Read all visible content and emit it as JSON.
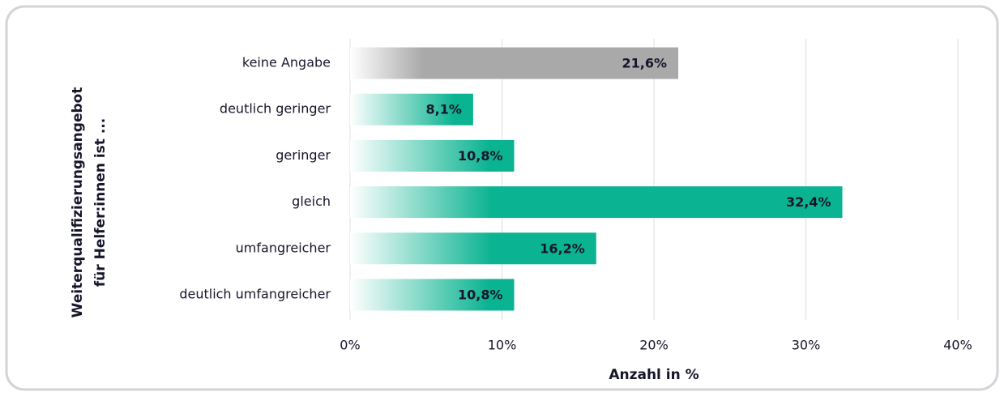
{
  "chart_data": {
    "type": "hbar",
    "ylabel": [
      "Weiterqualifizierungsangebot",
      "für Helfer:innen ist ..."
    ],
    "xlabel": "Anzahl in %",
    "categories": [
      "keine Angabe",
      "deutlich geringer",
      "geringer",
      "gleich",
      "umfangreicher",
      "deutlich umfangreicher"
    ],
    "values": [
      21.6,
      8.1,
      10.8,
      32.4,
      16.2,
      10.8
    ],
    "value_labels": [
      "21,6%",
      "8,1%",
      "10,8%",
      "32,4%",
      "16,2%",
      "10,8%"
    ],
    "colors": [
      "#a9a9a9",
      "#0ab391",
      "#0ab391",
      "#0ab391",
      "#0ab391",
      "#0ab391"
    ],
    "xlim": [
      0,
      40
    ],
    "xticks": [
      {
        "value": 0,
        "label": "0%"
      },
      {
        "value": 10,
        "label": "10%"
      },
      {
        "value": 20,
        "label": "20%"
      },
      {
        "value": 30,
        "label": "30%"
      },
      {
        "value": 40,
        "label": "40%"
      }
    ],
    "grid": true
  }
}
